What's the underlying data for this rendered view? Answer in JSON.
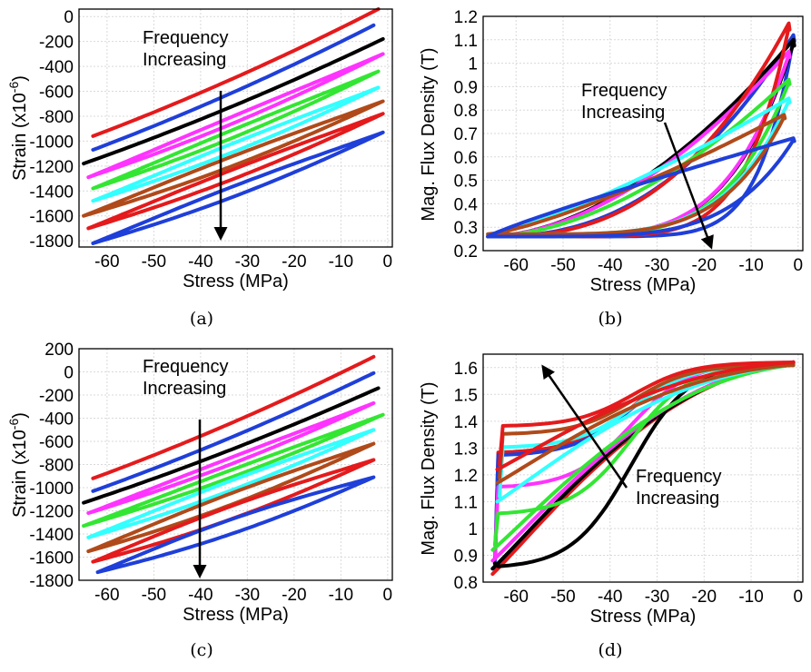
{
  "chart_data": [
    {
      "type": "line",
      "panel": "a",
      "caption": "(a)",
      "xlabel": "Stress (MPa)",
      "ylabel": "Strain (x10",
      "ylabel_sup": "-6",
      "ylabel_end": ")",
      "xlim": [
        -66,
        1
      ],
      "ylim": [
        -1850,
        60
      ],
      "xticks": [
        -60,
        -50,
        -40,
        -30,
        -20,
        -10,
        0
      ],
      "yticks": [
        0,
        -200,
        -400,
        -600,
        -800,
        -1000,
        -1200,
        -1400,
        -1600,
        -1800
      ],
      "annotation": {
        "line1": "Frequency",
        "line2": "Increasing"
      },
      "series": [
        {
          "color": "#e41a1c",
          "type": "line",
          "x0": -63,
          "x1": -2,
          "y0": -960,
          "y1": 60,
          "width": 0
        },
        {
          "color": "#1f3fd9",
          "type": "line",
          "x0": -63,
          "x1": -3,
          "y0": -1070,
          "y1": -70,
          "width": 0
        },
        {
          "color": "#000000",
          "type": "line",
          "x0": -65,
          "x1": -1,
          "y0": -1180,
          "y1": -180,
          "width": 0
        },
        {
          "color": "#ff33ff",
          "type": "loop",
          "x0": -64,
          "x1": -1,
          "y0": -1290,
          "y1": -300,
          "width": 40
        },
        {
          "color": "#33e633",
          "type": "loop",
          "x0": -63,
          "x1": -2,
          "y0": -1380,
          "y1": -440,
          "width": 45
        },
        {
          "color": "#33ffff",
          "type": "loop",
          "x0": -63,
          "x1": -2,
          "y0": -1480,
          "y1": -570,
          "width": 50
        },
        {
          "color": "#b04a1a",
          "type": "loop",
          "x0": -65,
          "x1": -1,
          "y0": -1600,
          "y1": -680,
          "width": 55
        },
        {
          "color": "#e41a1c",
          "type": "loop",
          "x0": -64,
          "x1": -1,
          "y0": -1700,
          "y1": -780,
          "width": 55
        },
        {
          "color": "#1f3fd9",
          "type": "loop",
          "x0": -63,
          "x1": -1,
          "y0": -1820,
          "y1": -930,
          "width": 60
        }
      ]
    },
    {
      "type": "line",
      "panel": "b",
      "caption": "(b)",
      "xlabel": "Stress (MPa)",
      "ylabel": "Mag. Flux Density (T)",
      "xlim": [
        -67,
        1
      ],
      "ylim": [
        0.2,
        1.2
      ],
      "xticks": [
        -60,
        -50,
        -40,
        -30,
        -20,
        -10,
        0
      ],
      "yticks": [
        1.2,
        1.1,
        1,
        0.9,
        0.8,
        0.7,
        0.6,
        0.5,
        0.4,
        0.3,
        0.2
      ],
      "annotation": {
        "line1": "Frequency",
        "line2": "Increasing"
      },
      "series": [
        {
          "color": "#1f3fd9",
          "xmin": -66,
          "xmax": -1,
          "ylow": 0.26,
          "ytop": 1.12,
          "kind": "wide"
        },
        {
          "color": "#000000",
          "xmin": -66,
          "xmax": -1,
          "ylow": 0.26,
          "ytop": 1.1,
          "kind": "mid"
        },
        {
          "color": "#ff33ff",
          "xmin": -66,
          "xmax": -2,
          "ylow": 0.26,
          "ytop": 1.05,
          "kind": "mid"
        },
        {
          "color": "#e41a1c",
          "xmin": -66,
          "xmax": -2,
          "ylow": 0.26,
          "ytop": 1.17,
          "kind": "narrow"
        },
        {
          "color": "#33e633",
          "xmin": -66,
          "xmax": -2,
          "ylow": 0.26,
          "ytop": 0.93,
          "kind": "mid"
        },
        {
          "color": "#33ffff",
          "xmin": -66,
          "xmax": -2,
          "ylow": 0.27,
          "ytop": 0.85,
          "kind": "flat"
        },
        {
          "color": "#b04a1a",
          "xmin": -66,
          "xmax": -3,
          "ylow": 0.27,
          "ytop": 0.78,
          "kind": "flat"
        },
        {
          "color": "#1f3fd9",
          "xmin": -66,
          "xmax": -1,
          "ylow": 0.26,
          "ytop": 0.68,
          "kind": "lowtop"
        }
      ]
    },
    {
      "type": "line",
      "panel": "c",
      "caption": "(c)",
      "xlabel": "Stress (MPa)",
      "ylabel": "Strain (x10",
      "ylabel_sup": "-6",
      "ylabel_end": ")",
      "xlim": [
        -66,
        1
      ],
      "ylim": [
        -1800,
        200
      ],
      "xticks": [
        -60,
        -50,
        -40,
        -30,
        -20,
        -10,
        0
      ],
      "yticks": [
        200,
        0,
        -200,
        -400,
        -600,
        -800,
        -1000,
        -1200,
        -1400,
        -1600,
        -1800
      ],
      "annotation": {
        "line1": "Frequency",
        "line2": "Increasing"
      },
      "series": [
        {
          "color": "#e41a1c",
          "type": "line",
          "x0": -63,
          "x1": -3,
          "y0": -920,
          "y1": 130,
          "width": 0
        },
        {
          "color": "#1f3fd9",
          "type": "line",
          "x0": -63,
          "x1": -3,
          "y0": -1030,
          "y1": -10,
          "width": 0
        },
        {
          "color": "#000000",
          "type": "line",
          "x0": -65,
          "x1": -2,
          "y0": -1130,
          "y1": -140,
          "width": 0
        },
        {
          "color": "#ff33ff",
          "type": "loop",
          "x0": -64,
          "x1": -3,
          "y0": -1220,
          "y1": -270,
          "width": 40
        },
        {
          "color": "#33e633",
          "type": "loop",
          "x0": -65,
          "x1": -1,
          "y0": -1330,
          "y1": -370,
          "width": 45
        },
        {
          "color": "#33ffff",
          "type": "loop",
          "x0": -64,
          "x1": -3,
          "y0": -1430,
          "y1": -500,
          "width": 60
        },
        {
          "color": "#b04a1a",
          "type": "loop",
          "x0": -64,
          "x1": -3,
          "y0": -1550,
          "y1": -620,
          "width": 70
        },
        {
          "color": "#e41a1c",
          "type": "loop",
          "x0": -63,
          "x1": -3,
          "y0": -1640,
          "y1": -760,
          "width": 80
        },
        {
          "color": "#1f3fd9",
          "type": "loop",
          "x0": -62,
          "x1": -3,
          "y0": -1730,
          "y1": -910,
          "width": 90
        }
      ]
    },
    {
      "type": "line",
      "panel": "d",
      "caption": "(d)",
      "xlabel": "Stress (MPa)",
      "ylabel": "Mag. Flux Density (T)",
      "xlim": [
        -67,
        1
      ],
      "ylim": [
        0.8,
        1.65
      ],
      "xticks": [
        -60,
        -50,
        -40,
        -30,
        -20,
        -10,
        0
      ],
      "yticks": [
        1.6,
        1.5,
        1.4,
        1.3,
        1.2,
        1.1,
        1,
        0.9,
        0.8
      ],
      "annotation": {
        "line1": "Frequency",
        "line2": "Increasing"
      },
      "series": [
        {
          "color": "#e41a1c",
          "xmin": -65,
          "xmax": -1,
          "ybot": 0.83,
          "ytop": 1.62,
          "upper": 1.28
        },
        {
          "color": "#1f3fd9",
          "xmin": -65,
          "xmax": -1,
          "ybot": 0.85,
          "ytop": 1.62,
          "upper": 1.27
        },
        {
          "color": "#000000",
          "xmin": -65,
          "xmax": -1,
          "ybot": 0.85,
          "ytop": 1.62,
          "upper": 0.85
        },
        {
          "color": "#ff33ff",
          "xmin": -65,
          "xmax": -1,
          "ybot": 0.88,
          "ytop": 1.62,
          "upper": 1.15
        },
        {
          "color": "#33e633",
          "xmin": -65,
          "xmax": -1,
          "ybot": 0.92,
          "ytop": 1.61,
          "upper": 1.05
        },
        {
          "color": "#33ffff",
          "xmin": -64,
          "xmax": -1,
          "ybot": 1.1,
          "ytop": 1.61,
          "upper": 1.3
        },
        {
          "color": "#b04a1a",
          "xmin": -64,
          "xmax": -1,
          "ybot": 1.17,
          "ytop": 1.61,
          "upper": 1.35
        },
        {
          "color": "#e41a1c",
          "xmin": -64,
          "xmax": -1,
          "ybot": 1.22,
          "ytop": 1.62,
          "upper": 1.38
        }
      ]
    }
  ]
}
